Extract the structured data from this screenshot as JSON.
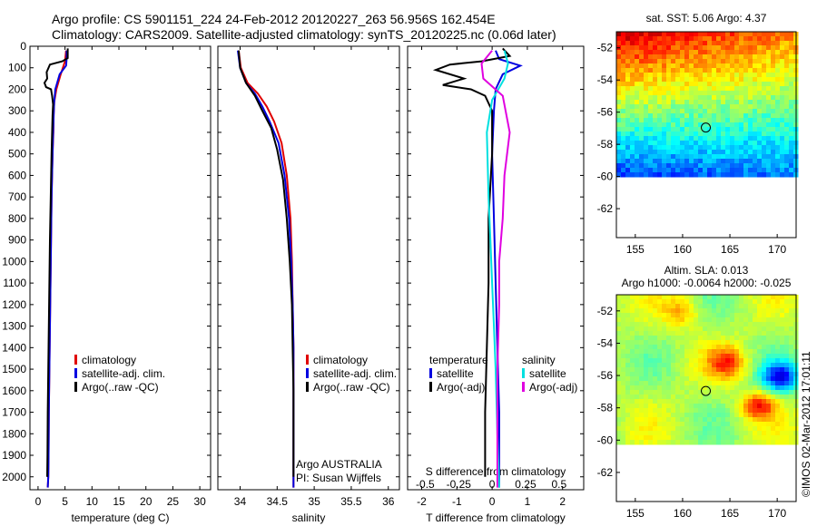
{
  "header": {
    "line1": "Argo profile: CS 5901151_224 24-Feb-2012 20120227_263 56.956S 162.454E",
    "line2": "Climatology: CARS2009. Satellite-adjusted climatology: synTS_20120225.nc (0.06d later)"
  },
  "depth_axis": {
    "ticks": [
      0,
      100,
      200,
      300,
      400,
      500,
      600,
      700,
      800,
      900,
      1000,
      1100,
      1200,
      1300,
      1400,
      1500,
      1600,
      1700,
      1800,
      1900,
      2000
    ],
    "range": [
      0,
      2060
    ],
    "inverted": true
  },
  "colors": {
    "climatology": "#e00000",
    "satellite": "#0000e0",
    "argo": "#000000",
    "sat_salinity": "#00e0e0",
    "argo_salinity": "#e000e0"
  },
  "chart_data": [
    {
      "type": "line",
      "panel": "temperature",
      "xlabel": "temperature (deg C)",
      "xticks": [
        0,
        5,
        10,
        15,
        20,
        25,
        30
      ],
      "xlim": [
        -1.5,
        32
      ],
      "legend": [
        "climatology",
        "satellite-adj. clim.",
        "Argo(..raw -QC)"
      ],
      "series": [
        {
          "name": "climatology",
          "color": "red",
          "x": [
            5.2,
            5.0,
            4.2,
            3.4,
            3.0,
            2.9,
            2.85,
            2.7,
            2.5,
            2.4,
            2.3,
            2.2,
            2.1,
            2.0,
            1.95,
            1.9,
            1.8
          ],
          "y": [
            20,
            70,
            130,
            200,
            260,
            320,
            400,
            500,
            700,
            900,
            1100,
            1300,
            1500,
            1700,
            1900,
            2000,
            2050
          ]
        },
        {
          "name": "satellite-adj. clim.",
          "color": "blue",
          "x": [
            5.3,
            5.3,
            5.2,
            4.0,
            3.2,
            3.0,
            2.9,
            2.7,
            2.5,
            2.4,
            2.3,
            2.2,
            2.1,
            2.0,
            1.95,
            1.9,
            1.8
          ],
          "y": [
            20,
            60,
            90,
            130,
            200,
            260,
            320,
            500,
            700,
            900,
            1100,
            1300,
            1500,
            1700,
            1900,
            2000,
            2050
          ]
        },
        {
          "name": "Argo(..raw -QC)",
          "color": "black",
          "x": [
            5.5,
            5.5,
            4.5,
            2.2,
            1.6,
            1.7,
            1.2,
            1.5,
            2.4,
            2.6,
            2.8,
            2.7,
            2.5,
            2.35,
            2.2,
            2.1,
            2.0,
            1.9,
            1.8,
            1.75,
            1.7
          ],
          "y": [
            10,
            55,
            70,
            85,
            120,
            150,
            170,
            190,
            200,
            230,
            270,
            320,
            500,
            700,
            900,
            1100,
            1300,
            1500,
            1700,
            1900,
            2000
          ]
        }
      ]
    },
    {
      "type": "line",
      "panel": "salinity",
      "xlabel": "salinity",
      "xticks": [
        34,
        34.5,
        35,
        35.5,
        36
      ],
      "xlim": [
        33.7,
        36.15
      ],
      "legend": [
        "climatology",
        "satellite-adj. clim.",
        "Argo(..raw -QC)"
      ],
      "annotation": [
        "Argo AUSTRALIA",
        "PI: Susan Wijffels"
      ],
      "series": [
        {
          "name": "climatology",
          "color": "red",
          "x": [
            33.98,
            34.01,
            34.1,
            34.24,
            34.36,
            34.46,
            34.56,
            34.63,
            34.68,
            34.7,
            34.71,
            34.72,
            34.72,
            34.72,
            34.72
          ],
          "y": [
            20,
            100,
            170,
            220,
            280,
            350,
            450,
            600,
            800,
            1000,
            1200,
            1400,
            1600,
            1800,
            2050
          ]
        },
        {
          "name": "satellite-adj. clim.",
          "color": "blue",
          "x": [
            33.97,
            34.0,
            34.08,
            34.2,
            34.3,
            34.4,
            34.52,
            34.6,
            34.66,
            34.69,
            34.71,
            34.72,
            34.72,
            34.72,
            34.72
          ],
          "y": [
            20,
            100,
            170,
            220,
            280,
            350,
            450,
            600,
            800,
            1000,
            1200,
            1400,
            1600,
            1800,
            2050
          ]
        },
        {
          "name": "Argo(..raw -QC)",
          "color": "black",
          "x": [
            33.98,
            34.0,
            34.08,
            34.2,
            34.3,
            34.42,
            34.5,
            34.58,
            34.63,
            34.67,
            34.7,
            34.71,
            34.72,
            34.72,
            34.72
          ],
          "y": [
            20,
            100,
            170,
            230,
            300,
            380,
            480,
            620,
            800,
            1000,
            1200,
            1400,
            1600,
            1800,
            2000
          ]
        }
      ]
    },
    {
      "type": "line",
      "panel": "difference",
      "xlabel": "T difference from climatology",
      "xlabel_top": "S difference from climatology",
      "xticks_bottom": [
        "-2",
        "-1",
        "0",
        "1",
        "2"
      ],
      "xticks_top": [
        "-0.5",
        "-0.25",
        "0",
        "0.25",
        "0.5"
      ],
      "xlim": [
        -2.4,
        2.6
      ],
      "legend_temperature": [
        "temperature",
        "satellite",
        "Argo(-adj)"
      ],
      "legend_salinity": [
        "salinity",
        "satellite",
        "Argo(-adj)"
      ],
      "series": [
        {
          "name": "temperature satellite",
          "color": "blue",
          "x": [
            0.1,
            0.2,
            0.8,
            0.3,
            0.1,
            0.05,
            0.0,
            0.05,
            0.1,
            0.15,
            0.2,
            0.2,
            0.2
          ],
          "y": [
            20,
            60,
            90,
            130,
            200,
            300,
            500,
            800,
            1100,
            1400,
            1700,
            1900,
            2050
          ]
        },
        {
          "name": "temperature Argo(-adj)",
          "color": "black",
          "x": [
            0.3,
            0.5,
            -0.3,
            -1.2,
            -1.6,
            -0.8,
            -1.4,
            -0.6,
            -0.2,
            0.0,
            0.0,
            -0.1,
            -0.1,
            -0.15,
            -0.2,
            -0.2
          ],
          "y": [
            10,
            45,
            70,
            85,
            110,
            150,
            180,
            200,
            230,
            300,
            500,
            800,
            1100,
            1400,
            1700,
            2000
          ]
        },
        {
          "name": "salinity satellite",
          "color": "cyan",
          "x": [
            0.35,
            0.45,
            0.35,
            0.0,
            -0.15,
            -0.1,
            -0.05,
            0.0,
            0.05,
            0.1,
            0.15,
            0.2
          ],
          "y": [
            20,
            80,
            150,
            250,
            400,
            700,
            900,
            1100,
            1300,
            1500,
            1800,
            2050
          ]
        },
        {
          "name": "salinity Argo(-adj)",
          "color": "magenta",
          "x": [
            0.0,
            -0.3,
            -0.25,
            0.3,
            0.5,
            0.35,
            0.3,
            0.2,
            0.2,
            0.15,
            0.15,
            0.15
          ],
          "y": [
            20,
            80,
            150,
            230,
            400,
            600,
            800,
            1000,
            1200,
            1500,
            1800,
            2050
          ]
        }
      ]
    },
    {
      "type": "heatmap",
      "panel": "sst_map",
      "title": "sat. SST: 5.06 Argo: 4.37",
      "xticks": [
        155,
        160,
        165,
        170
      ],
      "yticks": [
        -52,
        -54,
        -56,
        -58,
        -60,
        -62
      ],
      "xlim": [
        153,
        172
      ],
      "ylim": [
        -63.8,
        -51
      ]
    },
    {
      "type": "heatmap",
      "panel": "sla_map",
      "title": "Altim. SLA: 0.013",
      "subtitle": "Argo h1000: -0.0064 h2000: -0.025",
      "xticks": [
        155,
        160,
        165,
        170
      ],
      "yticks": [
        -52,
        -54,
        -56,
        -58,
        -60,
        -62
      ],
      "xlim": [
        153,
        172
      ],
      "ylim": [
        -63.8,
        -51
      ]
    }
  ],
  "side_label": "©IMOS 02-Mar-2012 17:01:11"
}
